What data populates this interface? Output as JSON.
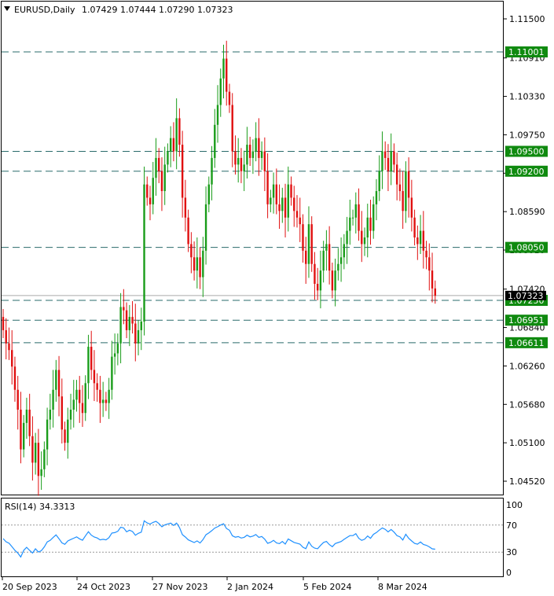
{
  "header": {
    "symbol": "EURUSD,Daily",
    "ohlc": "1.07429 1.07444 1.07290 1.07323"
  },
  "rsi_label": "RSI(14) 34.3313",
  "colors": {
    "bull": "#1a9c1a",
    "bear": "#e01010",
    "level_line": "#2a6b6b",
    "rsi_line": "#1e90ff",
    "label_bg": "#0f8a0f",
    "label_text": "#ffffff",
    "frame": "#000000"
  },
  "chart_data": [
    {
      "type": "candlestick",
      "symbol": "EURUSD",
      "timeframe": "Daily",
      "current_ohlc": {
        "open": 1.07429,
        "high": 1.07444,
        "low": 1.0729,
        "close": 1.07323
      },
      "ylim": [
        1.0425,
        1.118
      ],
      "y_ticks": [
        "1.11500",
        "1.10910",
        "1.10330",
        "1.09750",
        "1.09170",
        "1.08590",
        "1.08010",
        "1.07420",
        "1.06840",
        "1.06260",
        "1.05680",
        "1.05100",
        "1.04520"
      ],
      "x_ticks": [
        "20 Sep 2023",
        "24 Oct 2023",
        "27 Nov 2023",
        "2 Jan 2024",
        "5 Feb 2024",
        "8 Mar 2024"
      ],
      "current_price_label": "1.07323",
      "levels": [
        {
          "value": 1.11001,
          "label": "1.11001"
        },
        {
          "value": 1.095,
          "label": "1.09500"
        },
        {
          "value": 1.092,
          "label": "1.09200"
        },
        {
          "value": 1.0805,
          "label": "1.08050"
        },
        {
          "value": 1.0725,
          "label": "1.07250"
        },
        {
          "value": 1.06951,
          "label": "1.06951"
        },
        {
          "value": 1.06611,
          "label": "1.06611"
        }
      ],
      "closes": [
        1.068,
        1.066,
        1.065,
        1.0625,
        1.059,
        1.056,
        1.05,
        1.054,
        1.056,
        1.052,
        1.048,
        1.051,
        1.046,
        1.047,
        1.05,
        1.0545,
        1.056,
        1.059,
        1.062,
        1.058,
        1.053,
        1.051,
        1.0545,
        1.056,
        1.0575,
        1.059,
        1.057,
        1.0555,
        1.06,
        1.0655,
        1.062,
        1.06,
        1.059,
        1.057,
        1.0575,
        1.057,
        1.059,
        1.064,
        1.0645,
        1.066,
        1.0715,
        1.071,
        1.068,
        1.07,
        1.069,
        1.066,
        1.068,
        1.0693,
        1.09,
        1.088,
        1.087,
        1.091,
        1.094,
        1.092,
        1.089,
        1.093,
        1.095,
        1.097,
        1.095,
        1.1,
        1.096,
        1.088,
        1.085,
        1.081,
        1.079,
        1.077,
        1.079,
        1.076,
        1.08,
        1.087,
        1.09,
        1.094,
        1.099,
        1.102,
        1.106,
        1.109,
        1.104,
        1.102,
        1.095,
        1.093,
        1.094,
        1.092,
        1.093,
        1.096,
        1.094,
        1.095,
        1.097,
        1.094,
        1.095,
        1.092,
        1.087,
        1.088,
        1.09,
        1.087,
        1.086,
        1.088,
        1.085,
        1.09,
        1.088,
        1.086,
        1.085,
        1.084,
        1.08,
        1.078,
        1.084,
        1.078,
        1.075,
        1.074,
        1.077,
        1.08,
        1.081,
        1.077,
        1.074,
        1.077,
        1.078,
        1.079,
        1.081,
        1.083,
        1.085,
        1.085,
        1.087,
        1.083,
        1.081,
        1.082,
        1.085,
        1.083,
        1.087,
        1.089,
        1.092,
        1.095,
        1.094,
        1.092,
        1.095,
        1.093,
        1.09,
        1.089,
        1.086,
        1.092,
        1.088,
        1.085,
        1.082,
        1.081,
        1.083,
        1.08,
        1.079,
        1.077,
        1.0743,
        1.0732
      ],
      "rsi": {
        "label": "RSI(14) 34.3313",
        "ylim": [
          0,
          100
        ],
        "y_ticks": [
          "100",
          "70",
          "30",
          "0"
        ],
        "levels": [
          70,
          30
        ],
        "last": 34.3313
      }
    }
  ]
}
